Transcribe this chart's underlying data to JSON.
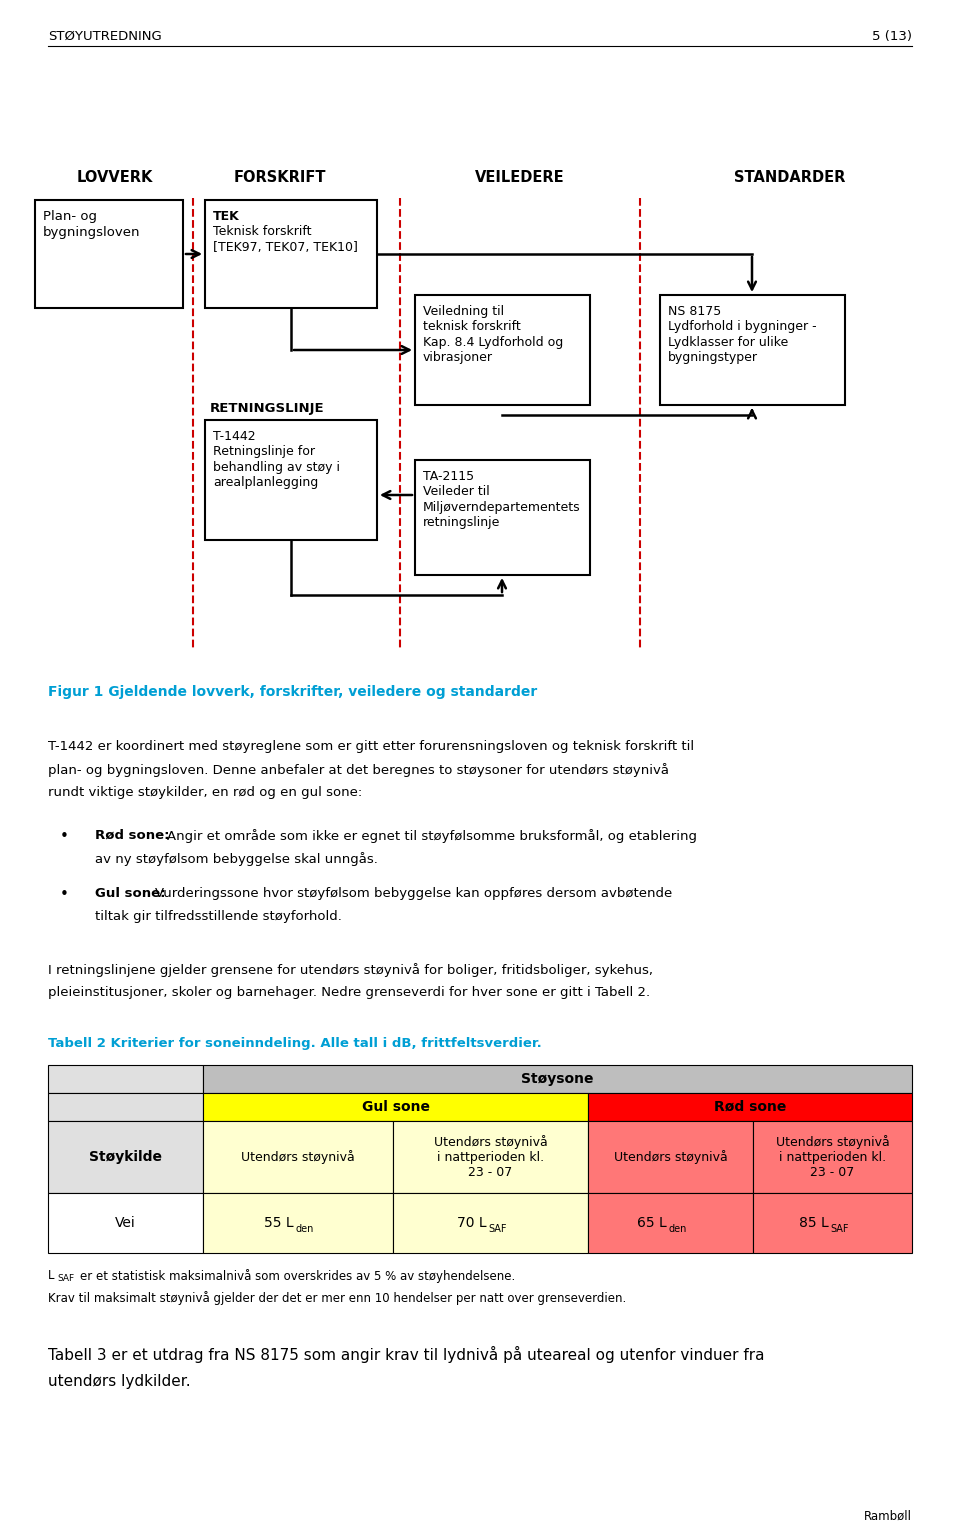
{
  "header_left": "STØYUTREDNING",
  "header_right": "5 (13)",
  "col_headers": [
    "LOVVERK",
    "FORSKRIFT",
    "VEILEDERE",
    "STANDARDER"
  ],
  "fig_caption": "Figur 1 Gjeldende lovverk, forskrifter, veiledere og standarder",
  "para1_line1": "T-1442 er koordinert med støyreglene som er gitt etter forurensningsloven og teknisk forskrift til",
  "para1_line2": "plan- og bygningsloven. Denne anbefaler at det beregnes to støysoner for utendørs støynivå",
  "para1_line3": "rundt viktige støykilder, en rød og en gul sone:",
  "bullet1_bold": "Rød sone:",
  "bullet1_rest": " Angir et område som ikke er egnet til støyfølsomme bruksformål, og etablering",
  "bullet1_line2": "av ny støyfølsom bebyggelse skal unngås.",
  "bullet2_bold": "Gul sone:",
  "bullet2_rest": " Vurderingssone hvor støyfølsom bebyggelse kan oppføres dersom avbøtende",
  "bullet2_line2": "tiltak gir tilfredsstillende støyforhold.",
  "para2_line1": "I retningslinjene gjelder grensene for utendørs støynivå for boliger, fritidsboliger, sykehus,",
  "para2_line2": "pleieinstitusjoner, skoler og barnehager. Nedre grenseverdi for hver sone er gitt i Tabell 2.",
  "tabell_caption": "Tabell 2 Kriterier for soneinndeling. Alle tall i dB, frittfeltsverdier.",
  "table_stoykilde": "Støykilde",
  "table_stoysone": "Støysone",
  "table_gul": "Gul sone",
  "table_rod": "Rød sone",
  "table_col1": "Utendørs støynivå",
  "table_col2": "Utendørs støynivå\ni nattperioden kl.\n23 - 07",
  "table_col3": "Utendørs støynivå",
  "table_col4": "Utendørs støynivå\ni nattperioden kl.\n23 - 07",
  "table_vei": "Vei",
  "footnote1rest": "er et statistisk maksimalnivå som overskrides av 5 % av støyhendelsene.",
  "footnote2": "Krav til maksimalt støynivå gjelder der det er mer enn 10 hendelser per natt over grenseverdien.",
  "para3_line1": "Tabell 3 er et utdrag fra NS 8175 som angir krav til lydnivå på uteareal og utenfor vinduer fra",
  "para3_line2": "utendørs lydkilder.",
  "footer": "Rambøll",
  "color_cyan": "#009FD4",
  "color_dashed_red": "#CC0000",
  "color_gray_header": "#BEBEBE",
  "color_light_gray": "#E0E0E0",
  "color_white": "#FFFFFF",
  "color_black": "#000000",
  "color_yellow": "#FFFF00",
  "color_light_yellow": "#FFFFD0",
  "color_red": "#FF0000",
  "color_light_red": "#FF7777"
}
